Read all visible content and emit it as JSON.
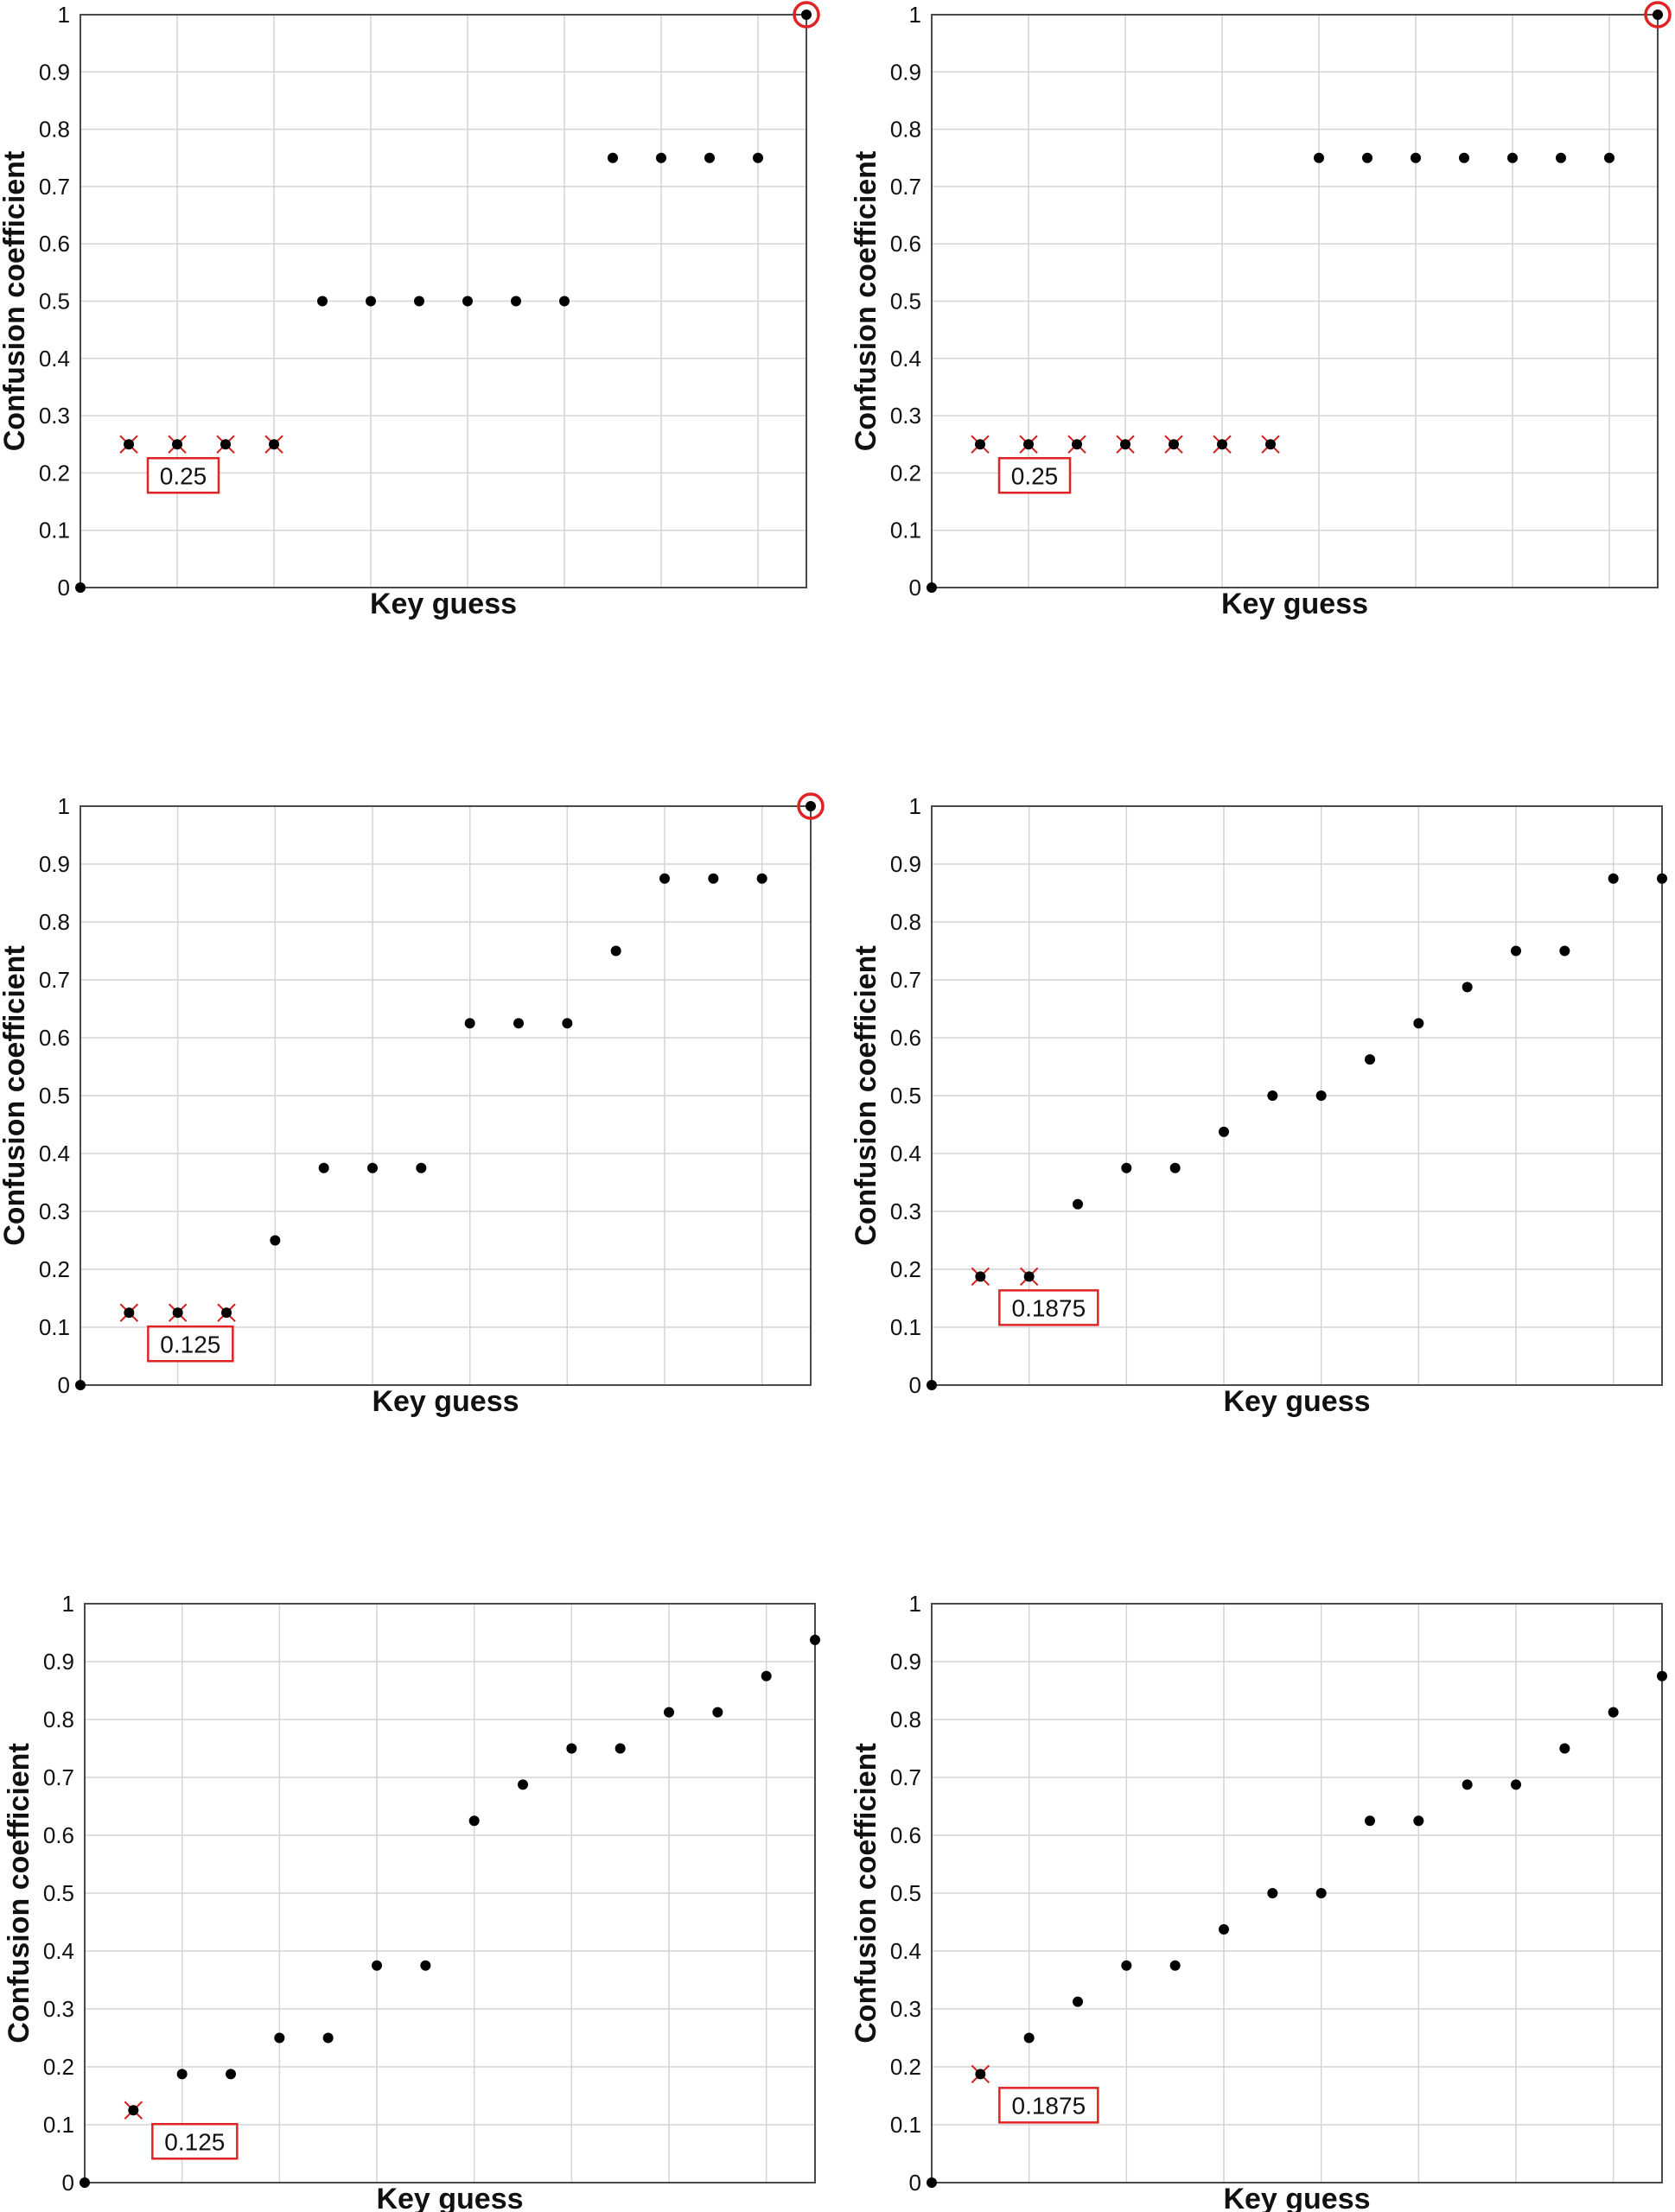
{
  "figure": {
    "panel_count": 6
  },
  "chart_data": [
    {
      "type": "scatter",
      "panel": "top-left",
      "title": "",
      "xlabel": "Key guess",
      "ylabel": "Confusion coefficient",
      "xlim": [
        0,
        15
      ],
      "ylim": [
        0,
        1
      ],
      "grid": true,
      "yticks": [
        "0",
        "0.1",
        "0.2",
        "0.3",
        "0.4",
        "0.5",
        "0.6",
        "0.7",
        "0.8",
        "0.9",
        "1"
      ],
      "x": [
        0,
        1,
        2,
        3,
        4,
        5,
        6,
        7,
        8,
        9,
        10,
        11,
        12,
        13,
        14,
        15
      ],
      "y": [
        0,
        0.25,
        0.25,
        0.25,
        0.25,
        0.5,
        0.5,
        0.5,
        0.5,
        0.5,
        0.5,
        0.75,
        0.75,
        0.75,
        0.75,
        1
      ],
      "highlighted_min_indices": [
        1,
        2,
        3,
        4
      ],
      "circled_index": 15,
      "callout": "0.25"
    },
    {
      "type": "scatter",
      "panel": "top-right",
      "title": "",
      "xlabel": "Key guess",
      "ylabel": "Confusion coefficient",
      "xlim": [
        0,
        15
      ],
      "ylim": [
        0,
        1
      ],
      "grid": true,
      "yticks": [
        "0",
        "0.1",
        "0.2",
        "0.3",
        "0.4",
        "0.5",
        "0.6",
        "0.7",
        "0.8",
        "0.9",
        "1"
      ],
      "x": [
        0,
        1,
        2,
        3,
        4,
        5,
        6,
        7,
        8,
        9,
        10,
        11,
        12,
        13,
        14,
        15
      ],
      "y": [
        0,
        0.25,
        0.25,
        0.25,
        0.25,
        0.25,
        0.25,
        0.25,
        0.75,
        0.75,
        0.75,
        0.75,
        0.75,
        0.75,
        0.75,
        1
      ],
      "highlighted_min_indices": [
        1,
        2,
        3,
        4,
        5,
        6,
        7
      ],
      "circled_index": 15,
      "callout": "0.25"
    },
    {
      "type": "scatter",
      "panel": "middle-left",
      "title": "",
      "xlabel": "Key guess",
      "ylabel": "Confusion coefficient",
      "xlim": [
        0,
        15
      ],
      "ylim": [
        0,
        1
      ],
      "grid": true,
      "yticks": [
        "0",
        "0.1",
        "0.2",
        "0.3",
        "0.4",
        "0.5",
        "0.6",
        "0.7",
        "0.8",
        "0.9",
        "1"
      ],
      "x": [
        0,
        1,
        2,
        3,
        4,
        5,
        6,
        7,
        8,
        9,
        10,
        11,
        12,
        13,
        14,
        15
      ],
      "y": [
        0,
        0.125,
        0.125,
        0.125,
        0.25,
        0.375,
        0.375,
        0.375,
        0.625,
        0.625,
        0.625,
        0.75,
        0.875,
        0.875,
        0.875,
        1
      ],
      "highlighted_min_indices": [
        1,
        2,
        3
      ],
      "circled_index": 15,
      "callout": "0.125"
    },
    {
      "type": "scatter",
      "panel": "middle-right",
      "title": "",
      "xlabel": "Key guess",
      "ylabel": "Confusion coefficient",
      "xlim": [
        0,
        15
      ],
      "ylim": [
        0,
        1
      ],
      "grid": true,
      "yticks": [
        "0",
        "0.1",
        "0.2",
        "0.3",
        "0.4",
        "0.5",
        "0.6",
        "0.7",
        "0.8",
        "0.9",
        "1"
      ],
      "x": [
        0,
        1,
        2,
        3,
        4,
        5,
        6,
        7,
        8,
        9,
        10,
        11,
        12,
        13,
        14,
        15
      ],
      "y": [
        0,
        0.1875,
        0.1875,
        0.3125,
        0.375,
        0.375,
        0.4375,
        0.5,
        0.5,
        0.5625,
        0.625,
        0.6875,
        0.75,
        0.75,
        0.875,
        0.875
      ],
      "highlighted_min_indices": [
        1,
        2
      ],
      "circled_index": null,
      "callout": "0.1875"
    },
    {
      "type": "scatter",
      "panel": "bottom-left",
      "title": "",
      "xlabel": "Key guess",
      "ylabel": "Confusion coefficient",
      "xlim": [
        0,
        15
      ],
      "ylim": [
        0,
        1
      ],
      "grid": true,
      "yticks": [
        "0",
        "0.1",
        "0.2",
        "0.3",
        "0.4",
        "0.5",
        "0.6",
        "0.7",
        "0.8",
        "0.9",
        "1"
      ],
      "x": [
        0,
        1,
        2,
        3,
        4,
        5,
        6,
        7,
        8,
        9,
        10,
        11,
        12,
        13,
        14,
        15
      ],
      "y": [
        0,
        0.125,
        0.1875,
        0.1875,
        0.25,
        0.25,
        0.375,
        0.375,
        0.625,
        0.6875,
        0.75,
        0.75,
        0.8125,
        0.8125,
        0.875,
        0.9375
      ],
      "highlighted_min_indices": [
        1
      ],
      "circled_index": null,
      "callout": "0.125"
    },
    {
      "type": "scatter",
      "panel": "bottom-right",
      "title": "",
      "xlabel": "Key guess",
      "ylabel": "Confusion coefficient",
      "xlim": [
        0,
        15
      ],
      "ylim": [
        0,
        1
      ],
      "grid": true,
      "yticks": [
        "0",
        "0.1",
        "0.2",
        "0.3",
        "0.4",
        "0.5",
        "0.6",
        "0.7",
        "0.8",
        "0.9",
        "1"
      ],
      "x": [
        0,
        1,
        2,
        3,
        4,
        5,
        6,
        7,
        8,
        9,
        10,
        11,
        12,
        13,
        14,
        15
      ],
      "y": [
        0,
        0.1875,
        0.25,
        0.3125,
        0.375,
        0.375,
        0.4375,
        0.5,
        0.5,
        0.625,
        0.625,
        0.6875,
        0.6875,
        0.75,
        0.8125,
        0.875
      ],
      "highlighted_min_indices": [
        1
      ],
      "circled_index": null,
      "callout": "0.1875"
    }
  ]
}
